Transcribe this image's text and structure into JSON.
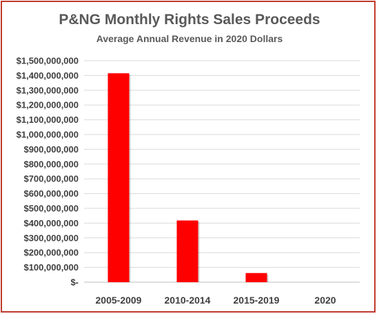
{
  "chart_data": {
    "type": "bar",
    "title": "P&NG Monthly Rights Sales Proceeds",
    "subtitle": "Average Annual Revenue in 2020 Dollars",
    "xlabel": "",
    "ylabel": "",
    "categories": [
      "2005-2009",
      "2010-2014",
      "2015-2019",
      "2020"
    ],
    "values": [
      1415000000,
      418000000,
      62000000,
      0
    ],
    "ylim": [
      0,
      1500000000
    ],
    "yticks": [
      0,
      100000000,
      200000000,
      300000000,
      400000000,
      500000000,
      600000000,
      700000000,
      800000000,
      900000000,
      1000000000,
      1100000000,
      1200000000,
      1300000000,
      1400000000,
      1500000000
    ],
    "ytick_labels": [
      "$-",
      "$100,000,000",
      "$200,000,000",
      "$300,000,000",
      "$400,000,000",
      "$500,000,000",
      "$600,000,000",
      "$700,000,000",
      "$800,000,000",
      "$900,000,000",
      "$1,000,000,000",
      "$1,100,000,000",
      "$1,200,000,000",
      "$1,300,000,000",
      "$1,400,000,000",
      "$1,500,000,000"
    ],
    "bar_color": "#ff0000",
    "grid": true,
    "legend": "none"
  }
}
